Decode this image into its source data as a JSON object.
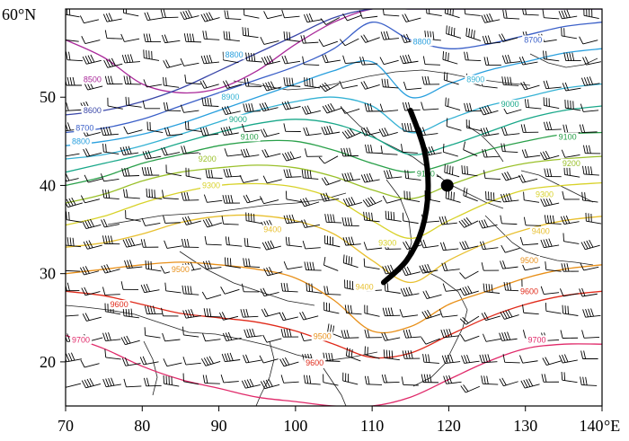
{
  "map": {
    "x_ticks": [
      "70",
      "80",
      "90",
      "100",
      "110",
      "120",
      "130",
      "140"
    ],
    "x_unit": "°E",
    "y_ticks": [
      "20",
      "30",
      "40",
      "50"
    ],
    "y_top": "60",
    "y_unit": "°N",
    "lon_range": [
      70,
      140
    ],
    "lat_range": [
      15,
      60
    ]
  },
  "contours": [
    {
      "level": "8500",
      "color": "#aa2a9a",
      "lat": [
        56.5,
        54.5,
        51.5,
        50.5,
        51.0,
        53.0,
        56.0,
        58.5,
        60.0,
        60.0,
        60.0,
        60.0,
        60.0,
        60.0,
        60.0
      ]
    },
    {
      "level": "8600",
      "color": "#3a47a8",
      "lat": [
        48.0,
        48.5,
        49.5,
        51.0,
        53.0,
        55.0,
        57.0,
        59.0,
        60.0,
        60.0,
        60.0,
        60.0,
        60.0,
        60.0,
        60.0
      ]
    },
    {
      "level": "8700",
      "color": "#3a5fc8",
      "lat": [
        46.0,
        46.5,
        47.5,
        49.0,
        50.5,
        52.0,
        53.5,
        55.5,
        58.5,
        56.5,
        55.5,
        56.0,
        57.0,
        58.0,
        58.5
      ]
    },
    {
      "level": "8800",
      "color": "#2aa0de",
      "lat": [
        44.5,
        45.0,
        45.8,
        47.0,
        48.5,
        50.0,
        51.5,
        53.0,
        54.0,
        50.0,
        51.5,
        53.0,
        54.0,
        55.0,
        55.5
      ]
    },
    {
      "level": "8900",
      "color": "#35b2d4",
      "lat": [
        43.0,
        43.5,
        44.5,
        45.8,
        47.2,
        48.5,
        49.5,
        50.0,
        49.0,
        46.0,
        47.5,
        49.0,
        50.0,
        51.0,
        51.5
      ]
    },
    {
      "level": "9000",
      "color": "#1aa88a",
      "lat": [
        41.5,
        42.5,
        43.5,
        44.8,
        46.0,
        47.0,
        47.5,
        47.0,
        45.5,
        43.5,
        44.5,
        46.0,
        47.5,
        48.5,
        49.0
      ]
    },
    {
      "level": "9100",
      "color": "#2aa04a",
      "lat": [
        40.0,
        41.0,
        42.5,
        43.5,
        44.5,
        45.0,
        45.0,
        44.0,
        42.5,
        41.5,
        42.5,
        44.0,
        45.0,
        45.8,
        46.0
      ]
    },
    {
      "level": "9200",
      "color": "#9ac02a",
      "lat": [
        38.0,
        39.0,
        40.5,
        41.5,
        42.0,
        42.3,
        42.0,
        41.0,
        39.5,
        38.5,
        40.0,
        41.5,
        42.5,
        43.0,
        43.3
      ]
    },
    {
      "level": "9300",
      "color": "#d8d22a",
      "lat": [
        35.5,
        36.5,
        38.0,
        39.2,
        40.0,
        40.2,
        39.8,
        38.5,
        36.0,
        34.0,
        36.0,
        38.0,
        39.5,
        40.0,
        40.3
      ]
    },
    {
      "level": "9400",
      "color": "#e8c030",
      "lat": [
        33.0,
        33.5,
        34.5,
        35.8,
        36.5,
        36.6,
        36.0,
        34.5,
        31.5,
        29.0,
        31.5,
        33.5,
        35.0,
        36.0,
        36.5
      ]
    },
    {
      "level": "9500",
      "color": "#e8901a",
      "lat": [
        30.0,
        30.5,
        31.0,
        31.3,
        31.0,
        30.5,
        29.5,
        27.0,
        23.5,
        24.0,
        26.5,
        28.0,
        29.5,
        30.5,
        31.0
      ]
    },
    {
      "level": "9600",
      "color": "#e02a1a",
      "lat": [
        28.0,
        27.5,
        26.5,
        25.5,
        25.0,
        24.5,
        23.5,
        22.0,
        20.5,
        21.0,
        23.0,
        25.0,
        26.5,
        27.5,
        28.0
      ]
    },
    {
      "level": "9700",
      "color": "#e02a6a",
      "lat": [
        23.0,
        21.5,
        19.5,
        18.0,
        17.0,
        16.0,
        15.5,
        15.0,
        15.0,
        16.0,
        18.0,
        20.0,
        21.5,
        22.0,
        22.0
      ]
    }
  ],
  "contour_label_positions": [
    {
      "level": "8500",
      "lon": 73.5,
      "lat": 52.0
    },
    {
      "level": "8600",
      "lon": 73.5,
      "lat": 48.5
    },
    {
      "level": "8700",
      "lon": 72.5,
      "lat": 46.5
    },
    {
      "level": "8800",
      "lon": 72.0,
      "lat": 45.0
    },
    {
      "level": "8800",
      "lon": 92.0,
      "lat": 54.8
    },
    {
      "level": "8800",
      "lon": 116.5,
      "lat": 56.3
    },
    {
      "level": "8700",
      "lon": 131.0,
      "lat": 56.5
    },
    {
      "level": "8900",
      "lon": 91.5,
      "lat": 50.0
    },
    {
      "level": "8900",
      "lon": 123.5,
      "lat": 52.0
    },
    {
      "level": "9000",
      "lon": 92.5,
      "lat": 47.5
    },
    {
      "level": "9000",
      "lon": 128.0,
      "lat": 49.2
    },
    {
      "level": "9100",
      "lon": 94.0,
      "lat": 45.5
    },
    {
      "level": "9100",
      "lon": 135.5,
      "lat": 45.5
    },
    {
      "level": "9100",
      "lon": 117.0,
      "lat": 41.3
    },
    {
      "level": "9200",
      "lon": 88.5,
      "lat": 43.0
    },
    {
      "level": "9200",
      "lon": 136.0,
      "lat": 42.5
    },
    {
      "level": "9300",
      "lon": 89.0,
      "lat": 40.0
    },
    {
      "level": "9300",
      "lon": 132.5,
      "lat": 39.0
    },
    {
      "level": "9300",
      "lon": 112.0,
      "lat": 33.5
    },
    {
      "level": "9400",
      "lon": 97.0,
      "lat": 35.0
    },
    {
      "level": "9400",
      "lon": 109.0,
      "lat": 28.5
    },
    {
      "level": "9400",
      "lon": 132.0,
      "lat": 34.8
    },
    {
      "level": "9500",
      "lon": 85.0,
      "lat": 30.5
    },
    {
      "level": "9500",
      "lon": 103.5,
      "lat": 22.9
    },
    {
      "level": "9500",
      "lon": 130.5,
      "lat": 31.5
    },
    {
      "level": "9600",
      "lon": 77.0,
      "lat": 26.5
    },
    {
      "level": "9600",
      "lon": 102.5,
      "lat": 19.9
    },
    {
      "level": "9600",
      "lon": 130.5,
      "lat": 28.0
    },
    {
      "level": "9700",
      "lon": 72.0,
      "lat": 22.5
    },
    {
      "level": "9700",
      "lon": 131.5,
      "lat": 22.5
    }
  ],
  "trough_axis": [
    [
      115.0,
      48.5
    ],
    [
      116.8,
      44.0
    ],
    [
      117.3,
      39.5
    ],
    [
      116.5,
      35.0
    ],
    [
      114.5,
      31.5
    ],
    [
      111.5,
      29.0
    ]
  ],
  "marker_point": {
    "lon": 119.8,
    "lat": 40.0
  },
  "wind_grid": {
    "lon_start": 72,
    "lon_step": 2.6,
    "lat_start": 17.5,
    "lat_step": 2.6
  }
}
